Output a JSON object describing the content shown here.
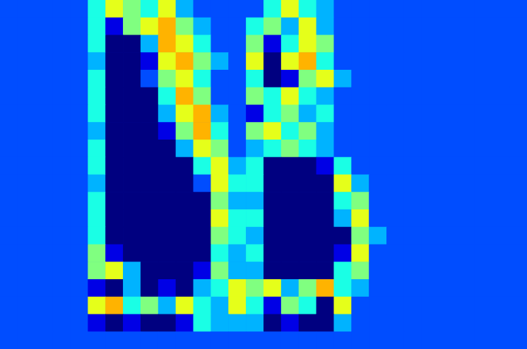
{
  "chart_data": {
    "type": "heatmap",
    "tick_labels": false,
    "color_range": [
      0,
      10
    ],
    "cells": [
      [
        2,
        2,
        2,
        2,
        2,
        4,
        6,
        5,
        4,
        6,
        3,
        2,
        2,
        2,
        2,
        4,
        6,
        4,
        3,
        2,
        2,
        2,
        2,
        2,
        2,
        2,
        2,
        2,
        2,
        2
      ],
      [
        2,
        2,
        2,
        2,
        2,
        4,
        1,
        5,
        6,
        7,
        5,
        3,
        2,
        2,
        4,
        5,
        3,
        6,
        3,
        2,
        2,
        2,
        2,
        2,
        2,
        2,
        2,
        2,
        2,
        2
      ],
      [
        2,
        2,
        2,
        2,
        2,
        4,
        0,
        0,
        3,
        7,
        6,
        4,
        2,
        2,
        5,
        1,
        4,
        6,
        5,
        2,
        2,
        2,
        2,
        2,
        2,
        2,
        2,
        2,
        2,
        2
      ],
      [
        2,
        2,
        2,
        2,
        2,
        3,
        0,
        0,
        1,
        6,
        7,
        5,
        3,
        2,
        6,
        0,
        6,
        7,
        4,
        2,
        2,
        2,
        2,
        2,
        2,
        2,
        2,
        2,
        2,
        2
      ],
      [
        2,
        2,
        2,
        2,
        2,
        4,
        0,
        0,
        2,
        5,
        6,
        4,
        2,
        2,
        4,
        0,
        1,
        5,
        6,
        3,
        2,
        2,
        2,
        2,
        2,
        2,
        2,
        2,
        2,
        2
      ],
      [
        2,
        2,
        2,
        2,
        2,
        4,
        0,
        0,
        0,
        4,
        7,
        5,
        2,
        2,
        5,
        4,
        6,
        4,
        3,
        2,
        2,
        2,
        2,
        2,
        2,
        2,
        2,
        2,
        2,
        2
      ],
      [
        2,
        2,
        2,
        2,
        2,
        4,
        0,
        0,
        0,
        3,
        6,
        7,
        3,
        2,
        1,
        4,
        5,
        3,
        4,
        2,
        2,
        2,
        2,
        2,
        2,
        2,
        2,
        2,
        2,
        2
      ],
      [
        2,
        2,
        2,
        2,
        2,
        3,
        0,
        0,
        0,
        1,
        5,
        7,
        4,
        2,
        5,
        6,
        4,
        5,
        3,
        2,
        2,
        2,
        2,
        2,
        2,
        2,
        2,
        2,
        2,
        2
      ],
      [
        2,
        2,
        2,
        2,
        2,
        4,
        0,
        0,
        0,
        0,
        3,
        6,
        5,
        2,
        3,
        4,
        5,
        4,
        3,
        2,
        2,
        2,
        2,
        2,
        2,
        2,
        2,
        2,
        2,
        2
      ],
      [
        2,
        2,
        2,
        2,
        2,
        4,
        0,
        0,
        0,
        0,
        0,
        4,
        6,
        3,
        4,
        0,
        0,
        0,
        1,
        4,
        2,
        2,
        2,
        2,
        2,
        2,
        2,
        2,
        2,
        2
      ],
      [
        2,
        2,
        2,
        2,
        2,
        3,
        0,
        0,
        0,
        0,
        0,
        2,
        6,
        4,
        4,
        0,
        0,
        0,
        0,
        6,
        3,
        2,
        2,
        2,
        2,
        2,
        2,
        2,
        2,
        2
      ],
      [
        2,
        2,
        2,
        2,
        2,
        4,
        0,
        0,
        0,
        0,
        0,
        0,
        5,
        3,
        3,
        0,
        0,
        0,
        0,
        4,
        5,
        2,
        2,
        2,
        2,
        2,
        2,
        2,
        2,
        2
      ],
      [
        2,
        2,
        2,
        2,
        2,
        4,
        0,
        0,
        0,
        0,
        0,
        0,
        6,
        4,
        4,
        0,
        0,
        0,
        0,
        3,
        6,
        2,
        2,
        2,
        2,
        2,
        2,
        2,
        2,
        2
      ],
      [
        2,
        2,
        2,
        2,
        2,
        4,
        0,
        0,
        0,
        0,
        0,
        0,
        5,
        4,
        3,
        0,
        0,
        0,
        0,
        0,
        5,
        3,
        2,
        2,
        2,
        2,
        2,
        2,
        2,
        2
      ],
      [
        2,
        2,
        2,
        2,
        2,
        5,
        1,
        0,
        0,
        0,
        0,
        0,
        4,
        3,
        4,
        0,
        0,
        0,
        0,
        1,
        6,
        2,
        2,
        2,
        2,
        2,
        2,
        2,
        2,
        2
      ],
      [
        2,
        2,
        2,
        2,
        2,
        5,
        6,
        3,
        0,
        0,
        0,
        1,
        5,
        3,
        3,
        0,
        0,
        0,
        0,
        4,
        5,
        2,
        2,
        2,
        2,
        2,
        2,
        2,
        2,
        2
      ],
      [
        2,
        2,
        2,
        2,
        2,
        1,
        0,
        3,
        0,
        1,
        0,
        3,
        4,
        6,
        5,
        6,
        3,
        5,
        7,
        4,
        3,
        2,
        2,
        2,
        2,
        2,
        2,
        2,
        2,
        2
      ],
      [
        2,
        2,
        2,
        2,
        2,
        6,
        7,
        4,
        5,
        3,
        6,
        4,
        3,
        6,
        4,
        1,
        5,
        4,
        0,
        6,
        2,
        2,
        2,
        2,
        2,
        2,
        2,
        2,
        2,
        2
      ],
      [
        2,
        2,
        2,
        2,
        2,
        1,
        0,
        1,
        0,
        0,
        1,
        4,
        3,
        3,
        3,
        0,
        1,
        0,
        0,
        3,
        2,
        2,
        2,
        2,
        2,
        2,
        2,
        2,
        2,
        2
      ],
      [
        2,
        2,
        2,
        2,
        2,
        2,
        2,
        2,
        2,
        2,
        2,
        2,
        2,
        2,
        2,
        2,
        2,
        2,
        2,
        2,
        2,
        2,
        2,
        2,
        2,
        2,
        2,
        2,
        2,
        2
      ]
    ]
  }
}
